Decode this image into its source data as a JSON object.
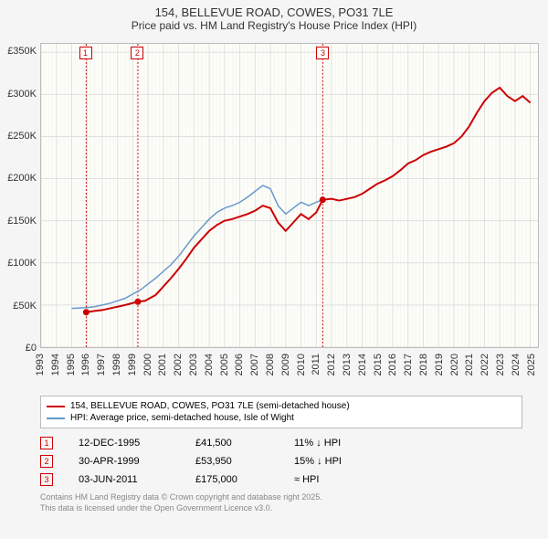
{
  "title_line1": "154, BELLEVUE ROAD, COWES, PO31 7LE",
  "title_line2": "Price paid vs. HM Land Registry's House Price Index (HPI)",
  "chart": {
    "type": "line",
    "background_color": "#fdfdf8",
    "grid_color": "#e0e0e0",
    "minor_grid_color": "#f0f0f0",
    "x_years": [
      1993,
      1994,
      1995,
      1996,
      1997,
      1998,
      1999,
      2000,
      2001,
      2002,
      2003,
      2004,
      2005,
      2006,
      2007,
      2008,
      2009,
      2010,
      2011,
      2012,
      2013,
      2014,
      2015,
      2016,
      2017,
      2018,
      2019,
      2020,
      2021,
      2022,
      2023,
      2024,
      2025
    ],
    "xlim": [
      1993,
      2025.5
    ],
    "ylim": [
      0,
      360000
    ],
    "ytick_step": 50000,
    "ytick_labels": [
      "£0",
      "£50K",
      "£100K",
      "£150K",
      "£200K",
      "£250K",
      "£300K",
      "£350K"
    ],
    "series": [
      {
        "name": "154, BELLEVUE ROAD, COWES, PO31 7LE (semi-detached house)",
        "color": "#cc0000",
        "width": 2,
        "points": [
          [
            1995.95,
            41500
          ],
          [
            1996.5,
            43000
          ],
          [
            1997,
            44000
          ],
          [
            1997.5,
            46000
          ],
          [
            1998,
            48000
          ],
          [
            1998.5,
            50000
          ],
          [
            1999.33,
            53950
          ],
          [
            1999.8,
            55000
          ],
          [
            2000.5,
            62000
          ],
          [
            2001,
            72000
          ],
          [
            2001.5,
            82000
          ],
          [
            2002,
            93000
          ],
          [
            2002.5,
            105000
          ],
          [
            2003,
            118000
          ],
          [
            2003.5,
            128000
          ],
          [
            2004,
            138000
          ],
          [
            2004.5,
            145000
          ],
          [
            2005,
            150000
          ],
          [
            2005.5,
            152000
          ],
          [
            2006,
            155000
          ],
          [
            2006.5,
            158000
          ],
          [
            2007,
            162000
          ],
          [
            2007.5,
            168000
          ],
          [
            2008,
            165000
          ],
          [
            2008.5,
            148000
          ],
          [
            2009,
            138000
          ],
          [
            2009.5,
            148000
          ],
          [
            2010,
            158000
          ],
          [
            2010.5,
            152000
          ],
          [
            2011,
            160000
          ],
          [
            2011.42,
            175000
          ],
          [
            2012,
            176000
          ],
          [
            2012.5,
            174000
          ],
          [
            2013,
            176000
          ],
          [
            2013.5,
            178000
          ],
          [
            2014,
            182000
          ],
          [
            2014.5,
            188000
          ],
          [
            2015,
            194000
          ],
          [
            2015.5,
            198000
          ],
          [
            2016,
            203000
          ],
          [
            2016.5,
            210000
          ],
          [
            2017,
            218000
          ],
          [
            2017.5,
            222000
          ],
          [
            2018,
            228000
          ],
          [
            2018.5,
            232000
          ],
          [
            2019,
            235000
          ],
          [
            2019.5,
            238000
          ],
          [
            2020,
            242000
          ],
          [
            2020.5,
            250000
          ],
          [
            2021,
            262000
          ],
          [
            2021.5,
            278000
          ],
          [
            2022,
            292000
          ],
          [
            2022.5,
            302000
          ],
          [
            2023,
            308000
          ],
          [
            2023.5,
            298000
          ],
          [
            2024,
            292000
          ],
          [
            2024.5,
            298000
          ],
          [
            2025,
            290000
          ]
        ]
      },
      {
        "name": "HPI: Average price, semi-detached house, Isle of Wight",
        "color": "#6699cc",
        "width": 1.5,
        "points": [
          [
            1995,
            46000
          ],
          [
            1995.5,
            46500
          ],
          [
            1996,
            47000
          ],
          [
            1996.5,
            48000
          ],
          [
            1997,
            50000
          ],
          [
            1997.5,
            52000
          ],
          [
            1998,
            55000
          ],
          [
            1998.5,
            58000
          ],
          [
            1999,
            63000
          ],
          [
            1999.5,
            68000
          ],
          [
            2000,
            75000
          ],
          [
            2000.5,
            82000
          ],
          [
            2001,
            90000
          ],
          [
            2001.5,
            98000
          ],
          [
            2002,
            108000
          ],
          [
            2002.5,
            120000
          ],
          [
            2003,
            132000
          ],
          [
            2003.5,
            142000
          ],
          [
            2004,
            152000
          ],
          [
            2004.5,
            160000
          ],
          [
            2005,
            165000
          ],
          [
            2005.5,
            168000
          ],
          [
            2006,
            172000
          ],
          [
            2006.5,
            178000
          ],
          [
            2007,
            185000
          ],
          [
            2007.5,
            192000
          ],
          [
            2008,
            188000
          ],
          [
            2008.5,
            168000
          ],
          [
            2009,
            158000
          ],
          [
            2009.5,
            165000
          ],
          [
            2010,
            172000
          ],
          [
            2010.5,
            168000
          ],
          [
            2011,
            172000
          ],
          [
            2011.42,
            175000
          ]
        ]
      }
    ],
    "sale_markers": [
      {
        "n": "1",
        "year": 1995.95,
        "price": 41500,
        "color": "#cc0000"
      },
      {
        "n": "2",
        "year": 1999.33,
        "price": 53950,
        "color": "#cc0000"
      },
      {
        "n": "3",
        "year": 2011.42,
        "price": 175000,
        "color": "#cc0000"
      }
    ]
  },
  "legend": [
    {
      "label": "154, BELLEVUE ROAD, COWES, PO31 7LE (semi-detached house)",
      "color": "#cc0000"
    },
    {
      "label": "HPI: Average price, semi-detached house, Isle of Wight",
      "color": "#6699cc"
    }
  ],
  "sales": [
    {
      "n": "1",
      "date": "12-DEC-1995",
      "price": "£41,500",
      "delta": "11% ↓ HPI",
      "color": "#cc0000"
    },
    {
      "n": "2",
      "date": "30-APR-1999",
      "price": "£53,950",
      "delta": "15% ↓ HPI",
      "color": "#cc0000"
    },
    {
      "n": "3",
      "date": "03-JUN-2011",
      "price": "£175,000",
      "delta": "≈ HPI",
      "color": "#cc0000"
    }
  ],
  "footnote_line1": "Contains HM Land Registry data © Crown copyright and database right 2025.",
  "footnote_line2": "This data is licensed under the Open Government Licence v3.0."
}
